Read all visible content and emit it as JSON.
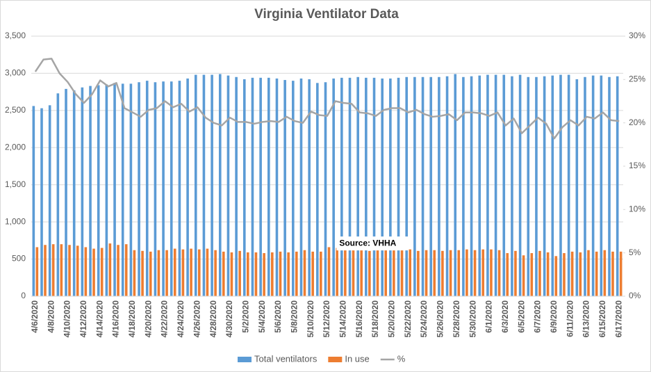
{
  "chart_data": {
    "type": "bar-line",
    "title": "Virginia Ventilator Data",
    "categories": [
      "4/6/2020",
      null,
      "4/8/2020",
      null,
      "4/10/2020",
      null,
      "4/12/2020",
      null,
      "4/14/2020",
      null,
      "4/16/2020",
      null,
      "4/18/2020",
      null,
      "4/20/2020",
      null,
      "4/22/2020",
      null,
      "4/24/2020",
      null,
      "4/26/2020",
      null,
      "4/28/2020",
      null,
      "4/30/2020",
      null,
      "5/2/2020",
      null,
      "5/4/2020",
      null,
      "5/6/2020",
      null,
      "5/8/2020",
      null,
      "5/10/2020",
      null,
      "5/12/2020",
      null,
      "5/14/2020",
      null,
      "5/16/2020",
      null,
      "5/18/2020",
      null,
      "5/20/2020",
      null,
      "5/22/2020",
      null,
      "5/24/2020",
      null,
      "5/26/2020",
      null,
      "5/28/2020",
      null,
      "5/30/2020",
      null,
      "6/1/2020",
      null,
      "6/3/2020",
      null,
      "6/5/2020",
      null,
      "6/7/2020",
      null,
      "6/9/2020",
      null,
      "6/11/2020",
      null,
      "6/13/2020",
      null,
      "6/15/2020",
      null,
      "6/17/2020"
    ],
    "series": [
      {
        "name": "Total ventilators",
        "color": "#5b9bd5",
        "kind": "bar",
        "values": [
          2560,
          2530,
          2570,
          2730,
          2790,
          2770,
          2810,
          2830,
          2840,
          2850,
          2870,
          2860,
          2860,
          2880,
          2900,
          2880,
          2890,
          2890,
          2900,
          2930,
          2980,
          2980,
          2980,
          2990,
          2970,
          2950,
          2920,
          2940,
          2940,
          2940,
          2930,
          2910,
          2900,
          2930,
          2920,
          2870,
          2880,
          2930,
          2940,
          2940,
          2950,
          2940,
          2940,
          2930,
          2930,
          2940,
          2950,
          2950,
          2950,
          2950,
          2950,
          2960,
          2990,
          2950,
          2960,
          2970,
          2980,
          2980,
          2980,
          2960,
          2980,
          2950,
          2950,
          2960,
          2970,
          2980,
          2980,
          2920,
          2950,
          2970,
          2970,
          2950,
          2960
        ]
      },
      {
        "name": "In use",
        "color": "#ed7d31",
        "kind": "bar",
        "values": [
          660,
          690,
          700,
          700,
          690,
          680,
          660,
          640,
          650,
          710,
          690,
          700,
          620,
          610,
          600,
          620,
          620,
          640,
          630,
          640,
          630,
          640,
          620,
          600,
          590,
          610,
          590,
          590,
          580,
          590,
          600,
          590,
          600,
          620,
          600,
          600,
          660,
          650,
          650,
          630,
          620,
          610,
          630,
          640,
          630,
          630,
          630,
          610,
          620,
          620,
          610,
          620,
          620,
          630,
          620,
          630,
          630,
          620,
          580,
          610,
          550,
          580,
          610,
          590,
          540,
          580,
          600,
          590,
          620,
          600,
          620,
          600,
          600
        ]
      },
      {
        "name": "%",
        "color": "#a5a5a5",
        "kind": "line",
        "axis": "y2",
        "values": [
          25.9,
          27.3,
          27.4,
          25.7,
          24.7,
          23.3,
          22.3,
          23.3,
          24.9,
          24.2,
          24.6,
          21.7,
          21.2,
          20.7,
          21.5,
          21.7,
          22.5,
          21.8,
          22.2,
          21.3,
          21.8,
          20.6,
          20.0,
          19.7,
          20.6,
          20.1,
          20.1,
          19.9,
          20.1,
          20.2,
          20.1,
          20.7,
          20.2,
          20.0,
          21.3,
          20.9,
          20.8,
          22.5,
          22.3,
          22.2,
          21.2,
          21.1,
          20.8,
          21.5,
          21.7,
          21.7,
          21.2,
          21.5,
          21.0,
          20.7,
          20.8,
          21.0,
          20.3,
          21.2,
          21.2,
          21.1,
          20.8,
          21.2,
          19.7,
          20.5,
          18.8,
          19.7,
          20.6,
          19.9,
          18.2,
          19.5,
          20.3,
          19.7,
          20.7,
          20.5,
          21.2,
          20.3,
          20.2
        ]
      }
    ],
    "ylim": [
      0,
      3500
    ],
    "yticks": [
      0,
      {
        "value": 500,
        "label": "500"
      },
      {
        "value": 1000,
        "label": "1,000"
      },
      {
        "value": 1500,
        "label": "1,500"
      },
      {
        "value": 2000,
        "label": "2,000"
      },
      {
        "value": 2500,
        "label": "2,500"
      },
      {
        "value": 3000,
        "label": "3,000"
      },
      {
        "value": 3500,
        "label": "3,500"
      }
    ],
    "y2lim": [
      0,
      30
    ],
    "y2ticks": [
      {
        "value": 0,
        "label": "0%"
      },
      {
        "value": 5,
        "label": "5%"
      },
      {
        "value": 10,
        "label": "10%"
      },
      {
        "value": 15,
        "label": "15%"
      },
      {
        "value": 20,
        "label": "20%"
      },
      {
        "value": 25,
        "label": "25%"
      },
      {
        "value": 30,
        "label": "30%"
      }
    ],
    "annotation": "Source: VHHA"
  }
}
